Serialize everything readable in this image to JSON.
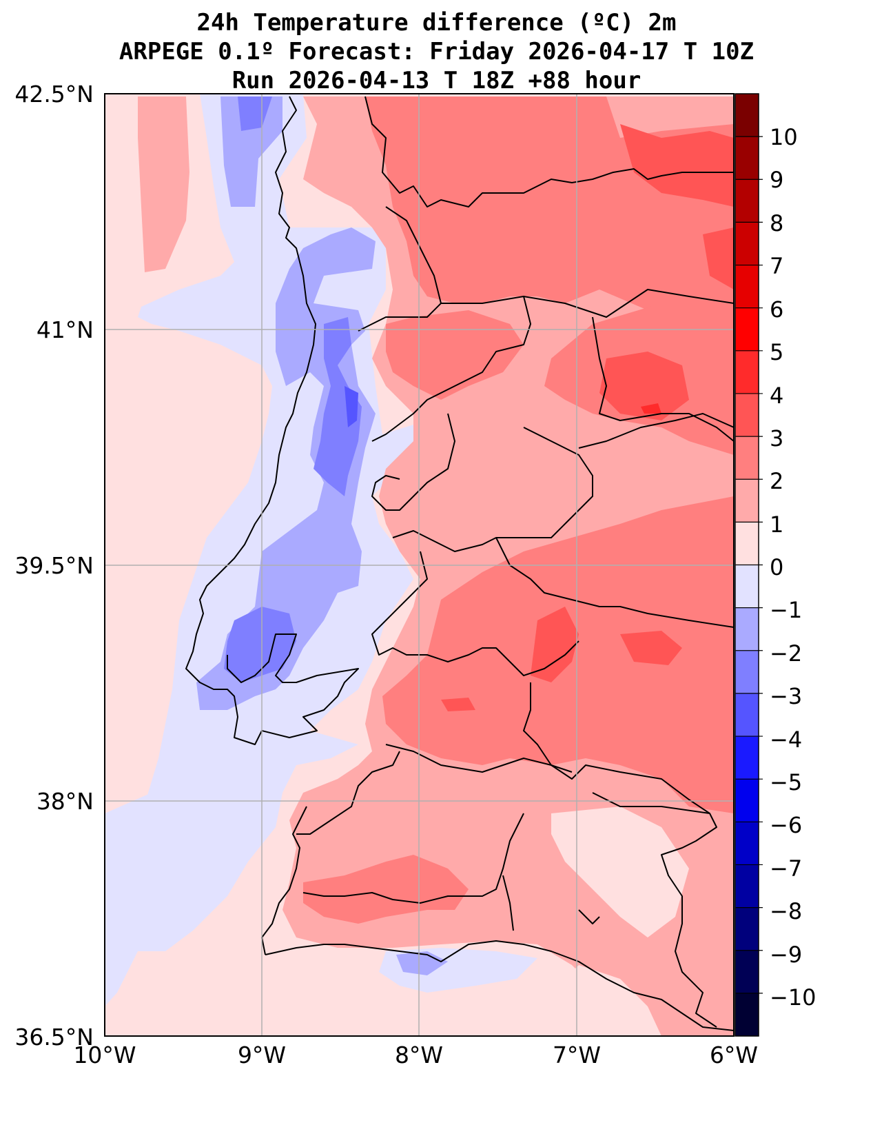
{
  "title": {
    "line1": "24h Temperature difference (ºC) 2m",
    "line2": "ARPEGE 0.1º Forecast: Friday 2026-04-17 T 10Z",
    "line3": "Run 2026-04-13 T 18Z +88 hour"
  },
  "axes": {
    "lon_labels": [
      "10°W",
      "9°W",
      "8°W",
      "7°W",
      "6°W"
    ],
    "lat_labels": [
      "42.5°N",
      "41°N",
      "39.5°N",
      "38°N",
      "36.5°N"
    ]
  },
  "colorbar": {
    "tick_labels": [
      "10",
      "9",
      "8",
      "7",
      "6",
      "5",
      "4",
      "3",
      "2",
      "1",
      "0",
      "−1",
      "−2",
      "−3",
      "−4",
      "−5",
      "−6",
      "−7",
      "−8",
      "−9",
      "−10"
    ],
    "colors_top_to_bottom": [
      "#7a0000",
      "#990000",
      "#b30000",
      "#cc0000",
      "#e60000",
      "#ff0000",
      "#ff2b2b",
      "#ff5555",
      "#ff7f7f",
      "#ffaaaa",
      "#ffe0e0",
      "#e2e2ff",
      "#aaaaff",
      "#7f7fff",
      "#5555ff",
      "#1a1aff",
      "#0000ee",
      "#0000c8",
      "#0000a2",
      "#00007c",
      "#000055",
      "#000033"
    ]
  },
  "map_colors": {
    "pos_0_1": "#ffe0e0",
    "pos_1_2": "#ffaaaa",
    "pos_2_3": "#ff7f7f",
    "pos_3_4": "#ff5555",
    "pos_4_5": "#ff2b2b",
    "neg_0_1": "#e2e2ff",
    "neg_1_2": "#aaaaff",
    "neg_2_3": "#7f7fff",
    "neg_3_4": "#5555ff"
  }
}
